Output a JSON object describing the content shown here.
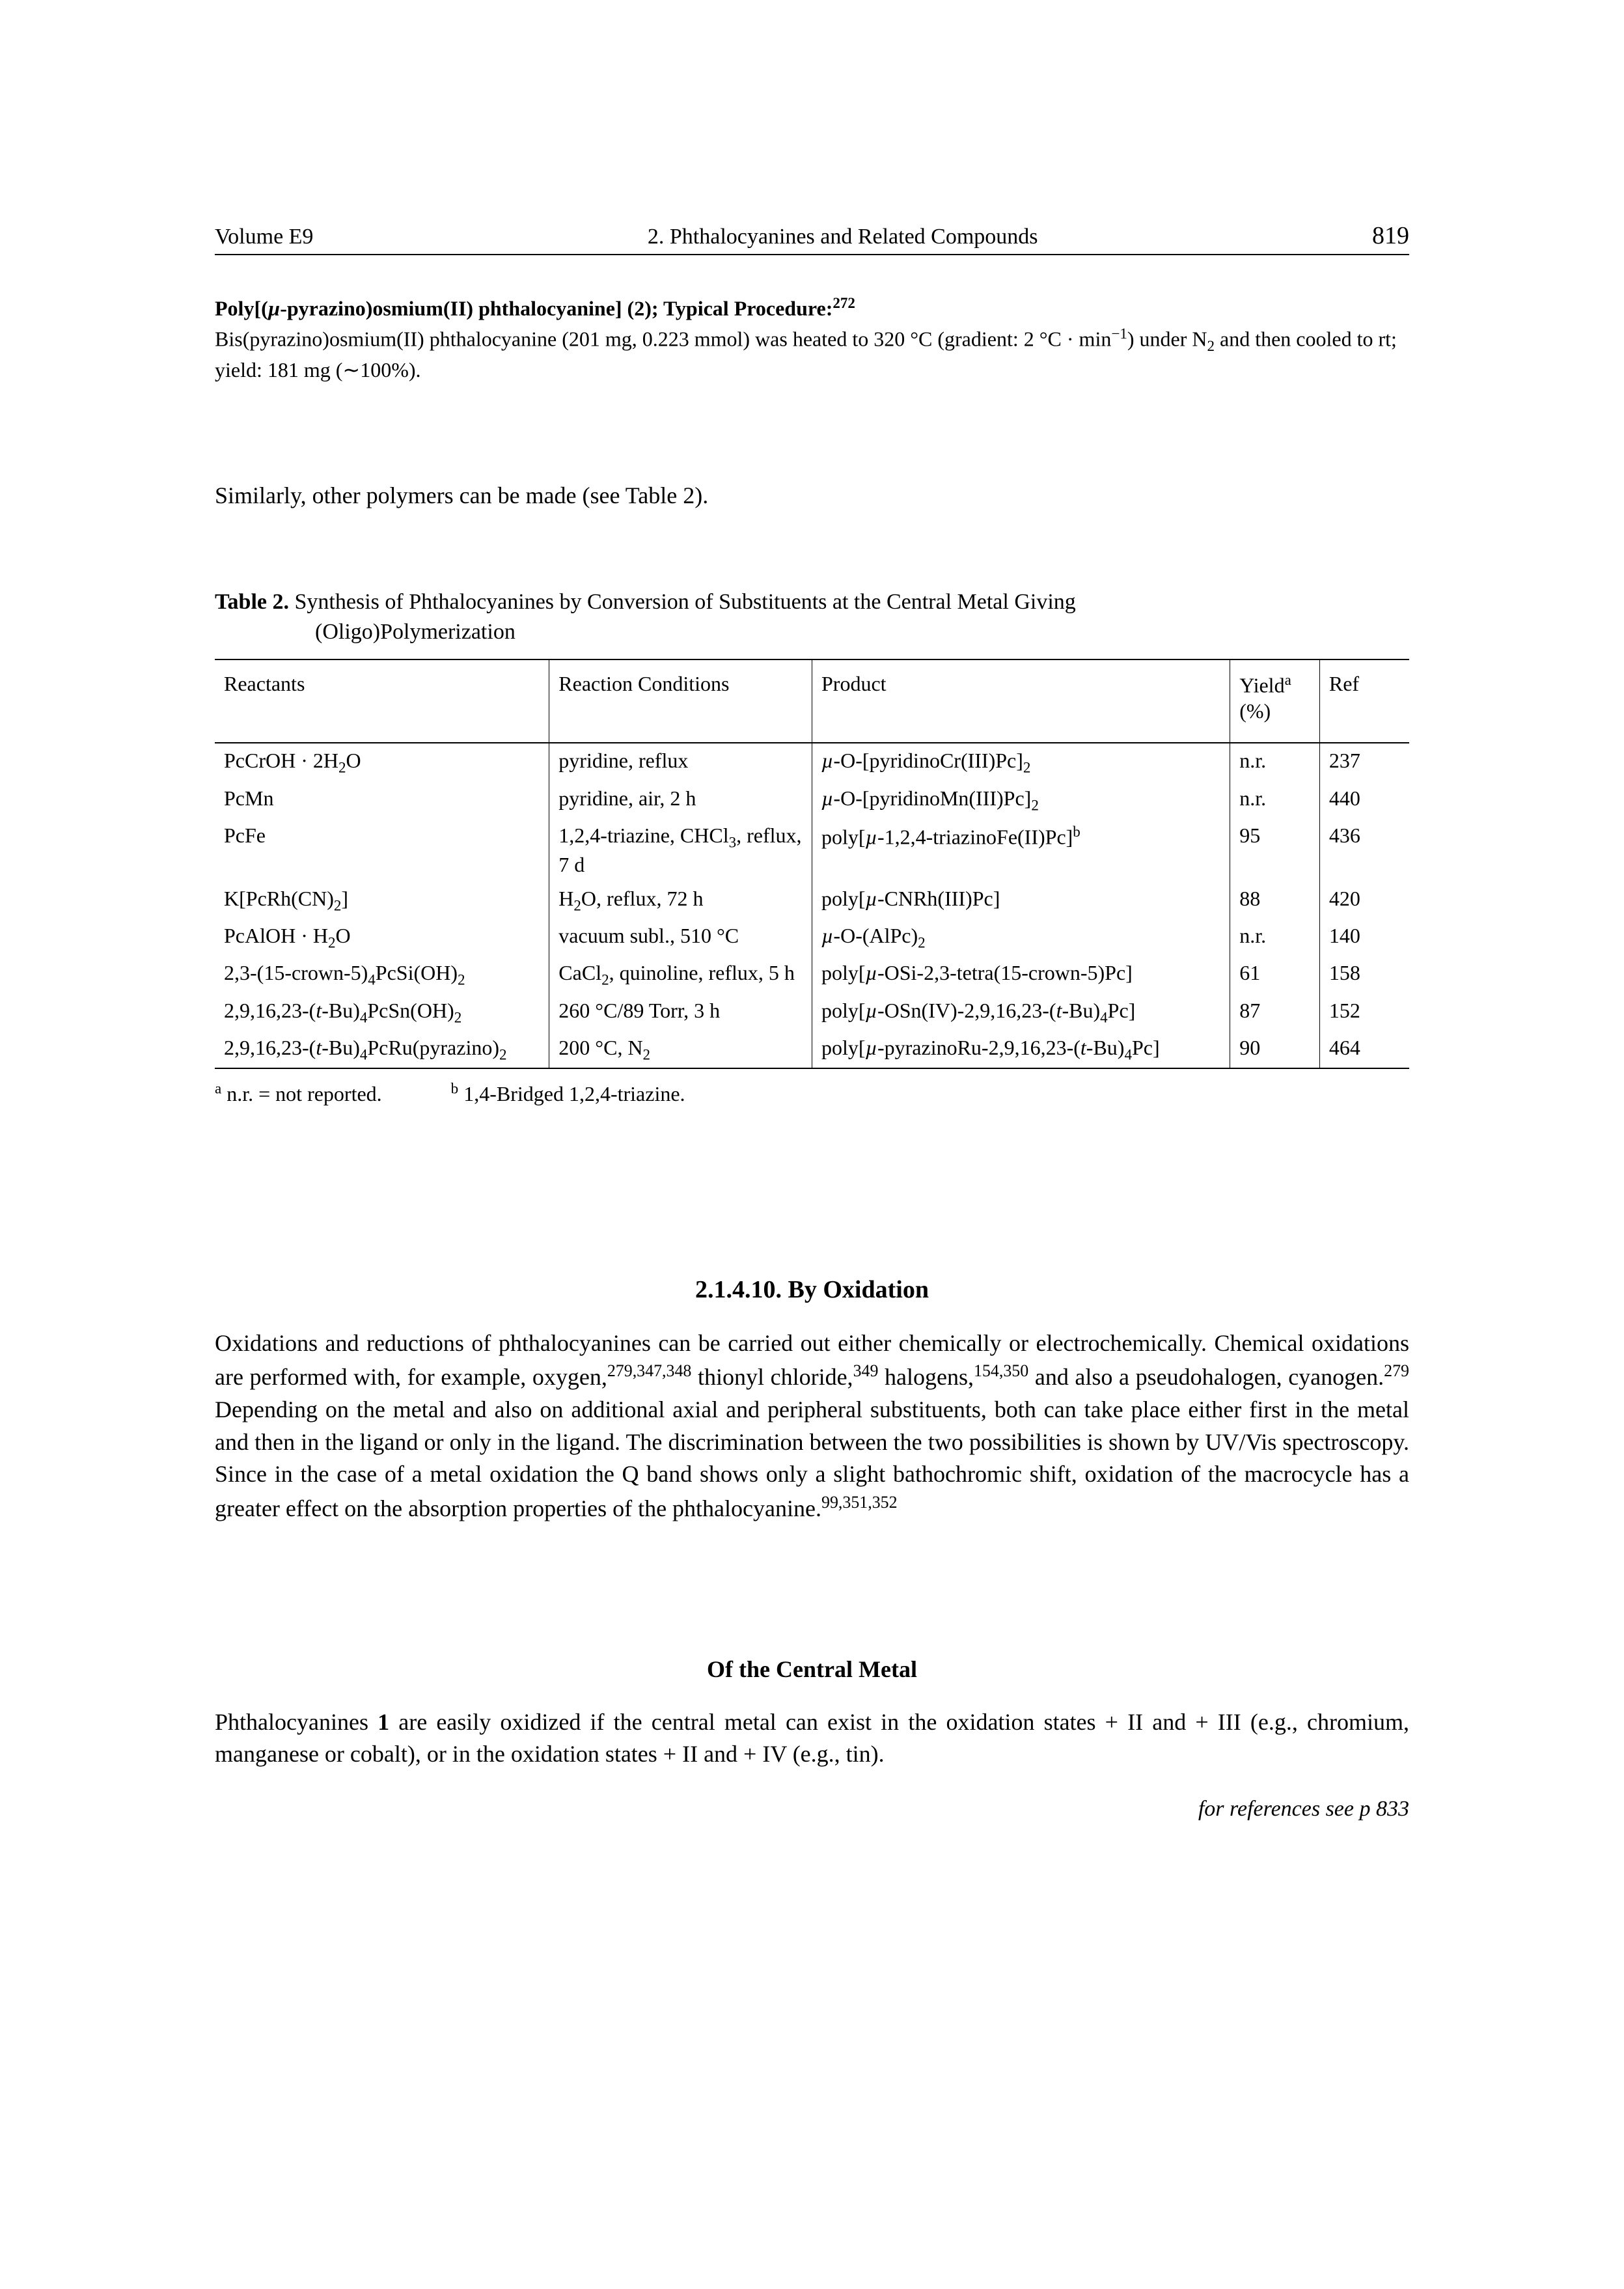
{
  "header": {
    "volume": "Volume E9",
    "chapter": "2. Phthalocyanines and Related Compounds",
    "page_number": "819"
  },
  "procedure": {
    "title_html": "Poly[(<i>µ</i>-pyrazino)osmium(II) phthalocyanine] (2); Typical Procedure:<sup>272</sup>",
    "body_html": "Bis(pyrazino)osmium(II) phthalocyanine (201 mg, 0.223 mmol) was heated to 320 °C (gradient: 2 °C · min<sup>−1</sup>) under N<sub>2</sub> and then cooled to rt; yield: 181 mg (∼100%)."
  },
  "similarly_line": "Similarly, other polymers can be made (see Table 2).",
  "table": {
    "label": "Table 2.",
    "caption_line1": "Synthesis of Phthalocyanines by Conversion of Substituents at the Central Metal Giving",
    "caption_line2": "(Oligo)Polymerization",
    "columns": {
      "reactants": "Reactants",
      "conditions": "Reaction Conditions",
      "product": "Product",
      "yield_html": "Yield<sup>a</sup> (%)",
      "ref": "Ref"
    },
    "column_widths_pct": [
      28,
      22,
      35,
      7.5,
      7.5
    ],
    "rows": [
      {
        "r_html": "PcCrOH · 2H<sub>2</sub>O",
        "c_html": "pyridine, reflux",
        "p_html": "<i>µ</i>-O-[pyridinoCr(III)Pc]<sub>2</sub>",
        "y": "n.r.",
        "ref": "237"
      },
      {
        "r_html": "PcMn",
        "c_html": "pyridine, air, 2 h",
        "p_html": "<i>µ</i>-O-[pyridinoMn(III)Pc]<sub>2</sub>",
        "y": "n.r.",
        "ref": "440"
      },
      {
        "r_html": "PcFe",
        "c_html": "1,2,4-triazine, CHCl<sub>3</sub>, reflux, 7 d",
        "p_html": "poly[<i>µ</i>-1,2,4-triazinoFe(II)Pc]<sup>b</sup>",
        "y": "95",
        "ref": "436"
      },
      {
        "r_html": "K[PcRh(CN)<sub>2</sub>]",
        "c_html": "H<sub>2</sub>O, reflux, 72 h",
        "p_html": "poly[<i>µ</i>-CNRh(III)Pc]",
        "y": "88",
        "ref": "420"
      },
      {
        "r_html": "PcAlOH · H<sub>2</sub>O",
        "c_html": "vacuum subl., 510 °C",
        "p_html": "<i>µ</i>-O-(AlPc)<sub>2</sub>",
        "y": "n.r.",
        "ref": "140"
      },
      {
        "r_html": "2,3-(15-crown-5)<sub>4</sub>PcSi(OH)<sub>2</sub>",
        "c_html": "CaCl<sub>2</sub>, quinoline, reflux, 5 h",
        "p_html": "poly[<i>µ</i>-OSi-2,3-tetra(15-crown-5)Pc]",
        "y": "61",
        "ref": "158"
      },
      {
        "r_html": "2,9,16,23-(<i>t</i>-Bu)<sub>4</sub>PcSn(OH)<sub>2</sub>",
        "c_html": "260 °C/89 Torr, 3 h",
        "p_html": "poly[<i>µ</i>-OSn(IV)-2,9,16,23-(<i>t</i>-Bu)<sub>4</sub>Pc]",
        "y": "87",
        "ref": "152"
      },
      {
        "r_html": "2,9,16,23-(<i>t</i>-Bu)<sub>4</sub>PcRu(pyrazino)<sub>2</sub>",
        "c_html": "200 °C, N<sub>2</sub>",
        "p_html": "poly[<i>µ</i>-pyrazinoRu-2,9,16,23-(<i>t</i>-Bu)<sub>4</sub>Pc]",
        "y": "90",
        "ref": "464"
      }
    ],
    "footnote_a_html": "<sup>a</sup>  n.r. = not reported.",
    "footnote_b_html": "<sup>b</sup>  1,4-Bridged 1,2,4-triazine."
  },
  "section": {
    "heading": "2.1.4.10. By Oxidation",
    "paragraph_html": "Oxidations and reductions of phthalocyanines can be carried out either chemically or electrochemically. Chemical oxidations are performed with, for example, oxygen,<sup>279,347,348</sup> thionyl chloride,<sup>349</sup> halogens,<sup>154,350</sup> and also a pseudohalogen, cyanogen.<sup>279</sup> Depending on the metal and also on additional axial and peripheral substituents, both can take place either first in the metal and then in the ligand or only in the ligand. The discrimination between the two possibilities is shown by UV/Vis spectroscopy. Since in the case of a metal oxidation the Q band shows only a slight bathochromic shift, oxidation of the macrocycle has a greater effect on the absorption properties of the phthalocyanine.<sup>99,351,352</sup>"
  },
  "subsection": {
    "heading": "Of the Central Metal",
    "paragraph_html": "Phthalocyanines <b>1</b> are easily oxidized if the central metal can exist in the oxidation states + II and + III (e.g., chromium, manganese or cobalt), or in the oxidation states + II and + IV (e.g., tin)."
  },
  "ref_note": "for references see p 833"
}
